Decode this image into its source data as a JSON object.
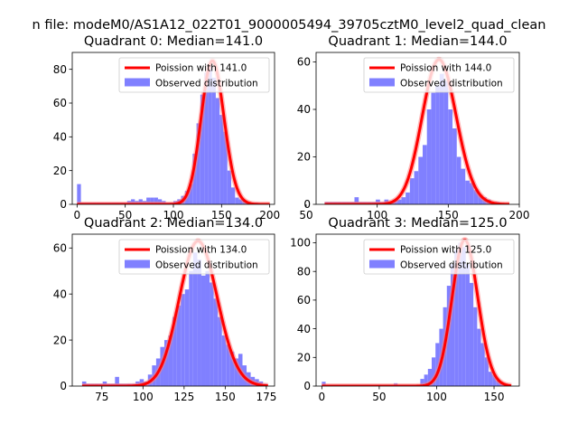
{
  "figure": {
    "suptitle": "n file: modeM0/AS1A12_022T01_9000005494_39705cztM0_level2_quad_clean",
    "colors": {
      "bar": "#8080ff",
      "curve": "#ff0000",
      "curve_glow": "#ff8080",
      "axis": "#000000",
      "legend_border": "#cccccc"
    }
  },
  "chart_data": [
    {
      "type": "bar",
      "title": "Quadrant 0: Median=141.0",
      "xlim": [
        -5,
        205
      ],
      "ylim": [
        0,
        90
      ],
      "xticks": [
        0,
        50,
        100,
        150,
        200
      ],
      "yticks": [
        0,
        20,
        40,
        60,
        80
      ],
      "legend": {
        "placement": "upper-right",
        "entries": [
          "Poission with 141.0",
          "Observed distribution"
        ]
      },
      "poisson_mean": 141.0,
      "poisson_peak": 85,
      "curve_x": [
        0,
        200
      ],
      "hist": {
        "edges": [
          0,
          4,
          8,
          12,
          16,
          20,
          24,
          28,
          32,
          36,
          40,
          44,
          48,
          52,
          56,
          60,
          64,
          68,
          72,
          76,
          80,
          84,
          88,
          92,
          96,
          100,
          104,
          108,
          112,
          116,
          120,
          124,
          128,
          132,
          136,
          140,
          144,
          148,
          152,
          156,
          160,
          164,
          168,
          172,
          176,
          180,
          184,
          188,
          192,
          196,
          200
        ],
        "counts": [
          12,
          1,
          1,
          1,
          1,
          1,
          1,
          1,
          1,
          1,
          1,
          1,
          1,
          2,
          3,
          2,
          3,
          2,
          4,
          4,
          4,
          3,
          2,
          1,
          1,
          2,
          3,
          5,
          8,
          12,
          30,
          48,
          65,
          78,
          83,
          75,
          63,
          53,
          43,
          20,
          10,
          4,
          3,
          2,
          1,
          1,
          1,
          0,
          0,
          0
        ]
      }
    },
    {
      "type": "bar",
      "title": "Quadrant 1: Median=144.0",
      "xlim": [
        57,
        200
      ],
      "ylim": [
        0,
        64
      ],
      "xticks": [
        50,
        100,
        150,
        200
      ],
      "yticks": [
        0,
        20,
        40,
        60
      ],
      "legend": {
        "placement": "upper-right",
        "entries": [
          "Poission with 144.0",
          "Observed distribution"
        ]
      },
      "poisson_mean": 144.0,
      "poisson_peak": 61,
      "curve_x": [
        63,
        193
      ],
      "hist": {
        "edges": [
          63,
          66,
          69,
          72,
          75,
          78,
          81,
          84,
          87,
          90,
          93,
          96,
          99,
          102,
          105,
          108,
          111,
          114,
          117,
          120,
          123,
          126,
          129,
          132,
          135,
          138,
          141,
          144,
          147,
          150,
          153,
          156,
          159,
          162,
          165,
          168,
          171,
          174,
          177,
          180,
          183,
          186,
          189,
          192
        ],
        "counts": [
          1,
          1,
          1,
          1,
          1,
          1,
          1,
          3,
          1,
          1,
          1,
          1,
          2,
          1,
          2,
          1,
          2,
          2,
          3,
          5,
          11,
          14,
          20,
          25,
          40,
          47,
          50,
          55,
          52,
          40,
          32,
          20,
          15,
          10,
          9,
          6,
          4,
          3,
          2,
          1,
          1,
          0,
          0
        ]
      }
    },
    {
      "type": "bar",
      "title": "Quadrant 2: Median=134.0",
      "xlim": [
        57,
        180
      ],
      "ylim": [
        0,
        66
      ],
      "xticks": [
        75,
        100,
        125,
        150,
        175
      ],
      "yticks": [
        0,
        20,
        40,
        60
      ],
      "legend": {
        "placement": "upper-right",
        "entries": [
          "Poission with 134.0",
          "Observed distribution"
        ]
      },
      "poisson_mean": 134.0,
      "poisson_peak": 63,
      "curve_x": [
        63,
        176
      ],
      "hist": {
        "edges": [
          63,
          65.5,
          68,
          70.5,
          73,
          75.5,
          78,
          80.5,
          83,
          85.5,
          88,
          90.5,
          93,
          95.5,
          98,
          100.5,
          103,
          105.5,
          108,
          110.5,
          113,
          115.5,
          118,
          120.5,
          123,
          125.5,
          128,
          130.5,
          133,
          135.5,
          138,
          140.5,
          143,
          145.5,
          148,
          150.5,
          153,
          155.5,
          158,
          160.5,
          163,
          165.5,
          168,
          170.5,
          173,
          175.5
        ],
        "counts": [
          2,
          1,
          1,
          1,
          1,
          2,
          1,
          1,
          4,
          1,
          1,
          1,
          1,
          2,
          3,
          2,
          5,
          9,
          12,
          17,
          20,
          22,
          30,
          35,
          40,
          42,
          50,
          58,
          55,
          48,
          50,
          45,
          38,
          30,
          22,
          18,
          15,
          12,
          14,
          9,
          6,
          4,
          3,
          2,
          1
        ]
      }
    },
    {
      "type": "bar",
      "title": "Quadrant 3: Median=125.0",
      "xlim": [
        -5,
        172
      ],
      "ylim": [
        0,
        106
      ],
      "xticks": [
        0,
        50,
        100,
        150
      ],
      "yticks": [
        0,
        20,
        40,
        60,
        80,
        100
      ],
      "legend": {
        "placement": "upper-right",
        "entries": [
          "Poission with 125.0",
          "Observed distribution"
        ]
      },
      "poisson_mean": 125.0,
      "poisson_peak": 102,
      "curve_x": [
        0,
        165
      ],
      "hist": {
        "edges": [
          0,
          3.3,
          6.6,
          9.9,
          13.2,
          16.5,
          19.8,
          23.1,
          26.4,
          29.7,
          33,
          36.3,
          39.6,
          42.9,
          46.2,
          49.5,
          52.8,
          56.1,
          59.4,
          62.7,
          66,
          69.3,
          72.6,
          75.9,
          79.2,
          82.5,
          85.8,
          89.1,
          92.4,
          95.7,
          99,
          102.3,
          105.6,
          108.9,
          112.2,
          115.5,
          118.8,
          122.1,
          125.4,
          128.7,
          132,
          135.3,
          138.6,
          141.9,
          145.2,
          148.5,
          151.8,
          155.1,
          158.4,
          161.7
        ],
        "counts": [
          3,
          1,
          1,
          1,
          1,
          1,
          1,
          1,
          1,
          1,
          1,
          1,
          1,
          1,
          1,
          1,
          1,
          1,
          1,
          2,
          1,
          1,
          1,
          1,
          1,
          1,
          5,
          8,
          12,
          20,
          30,
          40,
          55,
          70,
          85,
          95,
          100,
          97,
          85,
          72,
          55,
          40,
          30,
          20,
          10,
          8,
          4,
          2,
          1
        ]
      }
    }
  ]
}
